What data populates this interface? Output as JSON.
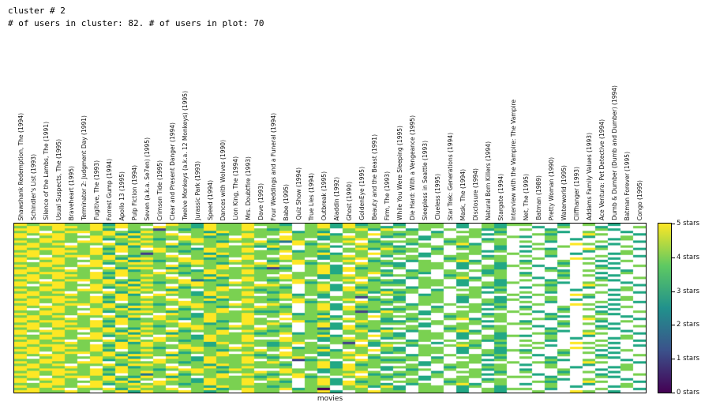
{
  "title": {
    "line1": "cluster # 2",
    "line2": "# of users in cluster: 82. # of users in plot: 70"
  },
  "chart_data": {
    "type": "heatmap",
    "xlabel": "movies",
    "users_in_cluster": 82,
    "users_in_plot": 70,
    "colormap": "viridis",
    "legend_position": "right-colorbar",
    "grid": false,
    "columns": [
      "Shawshank Redemption, The (1994)",
      "Schindler's List (1993)",
      "Silence of the Lambs, The (1991)",
      "Usual Suspects, The (1995)",
      "Braveheart (1995)",
      "Terminator 2: Judgment Day (1991)",
      "Fugitive, The (1993)",
      "Forrest Gump (1994)",
      "Apollo 13 (1995)",
      "Pulp Fiction (1994)",
      "Seven (a.k.a. Se7en) (1995)",
      "Crimson Tide (1995)",
      "Clear and Present Danger (1994)",
      "Twelve Monkeys (a.k.a. 12 Monkeys) (1995)",
      "Jurassic Park (1993)",
      "Speed (1994)",
      "Dances with Wolves (1990)",
      "Lion King, The (1994)",
      "Mrs. Doubtfire (1993)",
      "Dave (1993)",
      "Four Weddings and a Funeral (1994)",
      "Babe (1995)",
      "Quiz Show (1994)",
      "True Lies (1994)",
      "Outbreak (1995)",
      "Aladdin (1992)",
      "Ghost (1990)",
      "GoldenEye (1995)",
      "Beauty and the Beast (1991)",
      "Firm, The (1993)",
      "While You Were Sleeping (1995)",
      "Die Hard: With a Vengeance (1995)",
      "Sleepless in Seattle (1993)",
      "Clueless (1995)",
      "Star Trek: Generations (1994)",
      "Mask, The (1994)",
      "Disclosure (1994)",
      "Natural Born Killers (1994)",
      "Stargate (1994)",
      "Interview with the Vampire: The Vampire",
      "Net, The (1995)",
      "Batman (1989)",
      "Pretty Woman (1990)",
      "Waterworld (1995)",
      "Cliffhanger (1993)",
      "Addams Family Values (1993)",
      "Ace Ventura: Pet Detective (1994)",
      "Dumb & Dumber (Dumb and Dumber) (1994)",
      "Batman Forever (1995)",
      "Congo (1995)"
    ],
    "rows_encoding": "one string per user row; chars 0-5 = star rating, '.' = no rating (white)",
    "matrix": [
      "54554453544.5435445443.453534.3.44.3.4344..3.4.3..",
      "4545545454.54435445.44.45354434.44.3.43..3.4..3..4",
      "55454453.4414345445434.44.4535.34.4.434.4.3...43..",
      "45.455454354.443544445343.44.444.3.44.3...43.4..3.",
      "54554.4535445.4534544.4453.45434.4..434..43..54..3",
      "5.454454535445434.54.5443454.34.34.44..43.4..3..4.",
      "44554.5345434554454.454.34454..43.44.34...4.3..34.",
      "5454455.4454.45434453254.45.3444..34.44.4.3...4..3",
      "4545.445354453445.544.534.4543.34.453.4..4..54.3..",
      "554454.4535434.4544354.453.4443.44.34.3.3..4..3.4.",
      "5455445354.54435445.34.44.453544.3.44.3..43..54..3",
      "4545545454454345445445343.44.434.4..434.3.4..3..4.",
      "55454453.414.44354444.4453.4544.34.44..4..4.3..34.",
      "45.4554543445.453454.5443454.3.43.44.34.4.3...4..3",
      "54554.45355445434.54454.34454.44..34.44..4..54.3..",
      "5.45445453434554454.3454.45.34.34.453.4.3..4..3.4.",
      "44554.534554.45434454.534.45433.44.34.3.4..3.4.3..",
      "5454455.444453445.5454.453.4443.44.3.434.3.4..3..4",
      "4545.445355434.4544313.453534.4.44.3.43.4.3...43..",
      "554454.4534.5435445444.4535443.34.4.434...43.4..3.",
      "545544535445434544544.4453.454.43.44.34.3..4..3.4.",
      "454554545454.4435444.5443454.344..34.44.4..3.4.3..",
      "55454453.4445.453454454.34454..34.453.4..3.4..3..4",
      "45.45545435445234.543454.45.343.44.34.3.4.3...43..",
      "54554.4535434554454.4.534.45433.44.3.434..43.4..3.",
      "5.4544545354.454344554.453.4444.44.3.43..43..54..3",
      "44554.53454453445.5443.453534..34.4.434.3.4..3..4.",
      "5454455.445434.4544344.453544344.3.44.3...4.3..34.",
      "4545.445354.5435445434.44.453534.4..434.4.3...4..3",
      "554454.453.54435445.45343.44.44.34.44..4.4..54.3..",
      "545544535454.4435444454.34414.3.44.34.3.3.4..3..4.",
      "4545545454445.4534543454.45.343.44.3.434..4.3..34.",
      "55454453.45445434.544.534.45434.44.3.43.4.3...4..3",
      "45.4554543434554454.54.453.444.34.4.434..4..54.3..",
      "54554.453554.454344543.453534.44.3.44.3.3..4..3.4.",
      "5.454454534453445.5444.453544334.4..434.4..3.4.3..",
      "44554.53455434.4544334.44.41354.34.44..4.3.4..3..4",
      "5454455.444.5435445445343.44.4.43.44.34.4.3...43..",
      "4545.44535.54435445.4.4453.45444..34.44...43.4..3.",
      "554454.4534543454454.5443454.3.34.453.4..43..54..3",
      "5455445354445.4534544.534.454334.4..434.3..4..3.4.",
      "45455454545445434.5454.453.4444.34.44..44..3.4.3..",
      "55454453.4434554454.43.453534..43.44.34..3.4..3..4",
      "45.455454354.454344544.423544344..34.44.4.3...43..",
      "54554.45354453445.5434.44.4535.34.453.4...43.4..3.",
      "5.454454535434.4544345343.44.43.44.34.3..43..54..3",
      "44554.53454.543544544.4453.4543.44.3.4343.4..3..4.",
      "5454455.44.54435445..5443454.34.44.3.43...4.3..34.",
      "4545.445354543454454454.34454..34.4.434.4.3...4..3",
      "554454.45354.44354443454.41.3444.3.44.3..4..54.3..",
      "54554453545445434.5434.44.4535.34.453.4.4.3...4..3",
      "4545545454434554454.45343.44.43.44.34.3..4..54.3..",
      "55454453.454.45434454.4453.4543.44.3.4343..4..3.4.",
      "45.45545434453445.54.5443454.34.44.3.43.4..3.4.3..",
      "54554.45355434.45443454.34454..34.4.434..3.4..3..4",
      "5.454454534.543544543454.45.3444.3.44.3.4.3...43..",
      "44554.5345.54435445.4.134.454334.4..434...43.4..3.",
      "5454455.44454345445454.453.4444.34.44..4.43..54..3",
      "4545.4453554.443544443.453534..43.44.34.3.4..3..4.",
      "554454.453445.45345444.453544344..34.44...4.3..34.",
      "5455445354434554454..5443454.3.34.4.434.3..4..3.4.",
      "454554545454.4543445454.34454.44.3.44.3.4..3.4.3..",
      "55454453.42453445.543454.45.3434.4..434..3.4..3..4",
      "45.45545435434.454434.534.45434.34.44..44.3...43..",
      "54554.45354.5435445454.453.444.43.44.34...43.4..3.",
      "5.45445453.54435445.43.453534.44..34.44..43..54..3",
      "44554.5345454345445444.4535443.34.453.4.3.4..3..4.",
      "5454455.4454.443544434.44.45353.44.34.3...4.3..34.",
      "4545.44535445.45345445340.44.43.44.3.4344.3...4..3",
      "554454.4535445434.544.4453.4544.44.3.43..4..54.3.."
    ],
    "value_colors": {
      "0": "#440154",
      "1": "#414487",
      "2": "#2a788e",
      "3": "#22a884",
      "4": "#7ad151",
      "5": "#fde725",
      "missing": "#ffffff"
    },
    "colorbar": {
      "ticks": [
        "0 stars",
        "1 stars",
        "2 stars",
        "3 stars",
        "4 stars",
        "5 stars"
      ],
      "gradient": [
        "#440154",
        "#3b528b",
        "#21918c",
        "#5ec962",
        "#fde725"
      ],
      "range": [
        0,
        5
      ]
    }
  }
}
